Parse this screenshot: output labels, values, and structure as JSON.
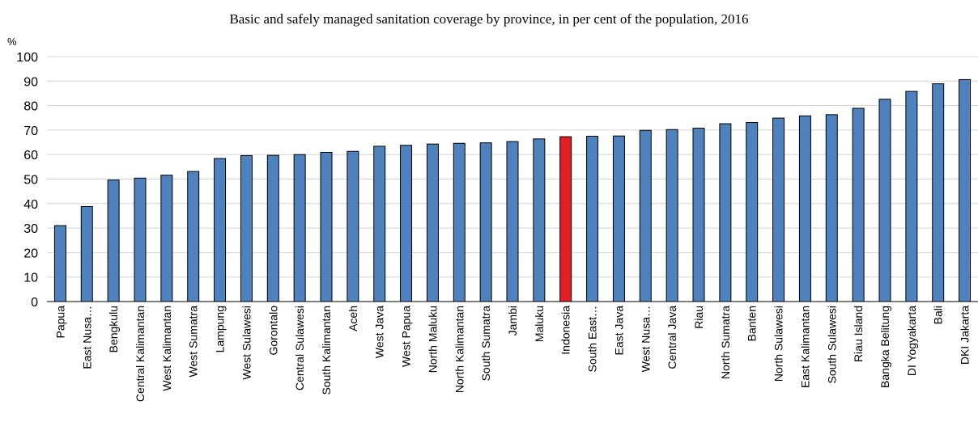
{
  "chart_data": {
    "type": "bar",
    "title": "Basic and safely managed sanitation coverage by province, in per cent of the population, 2016",
    "ylabel": "%",
    "ylim": [
      0,
      100
    ],
    "yticks": [
      0,
      10,
      20,
      30,
      40,
      50,
      60,
      70,
      80,
      90,
      100
    ],
    "grid": true,
    "categories": [
      "Papua",
      "East Nusa…",
      "Bengkulu",
      "Central Kalimantan",
      "West Kalimantan",
      "West Sumatra",
      "Lampung",
      "West Sulawesi",
      "Gorontalo",
      "Central Sulawesi",
      "South Kalimantan",
      "Aceh",
      "West Java",
      "West Papua",
      "North Maluku",
      "North Kalimantan",
      "South Sumatra",
      "Jambi",
      "Maluku",
      "Indonesia",
      "South East…",
      "East Java",
      "West Nusa…",
      "Central Java",
      "Riau",
      "North Sumatra",
      "Banten",
      "North Sulawesi",
      "East Kalimantan",
      "South Sulawesi",
      "Riau Island",
      "Bangka Belitung",
      "DI Yogyakarta",
      "Bali",
      "DKI Jakarta"
    ],
    "values": [
      31,
      38.8,
      49.6,
      50.4,
      51.6,
      53.1,
      58.4,
      59.6,
      59.7,
      60,
      60.9,
      61.3,
      63.4,
      63.8,
      64.3,
      64.6,
      64.8,
      65.3,
      66.4,
      67.3,
      67.5,
      67.6,
      69.9,
      70.2,
      70.8,
      72.6,
      73.1,
      74.9,
      75.8,
      76.3,
      78.9,
      82.6,
      85.8,
      88.9,
      90.6
    ],
    "highlight_category": "Indonesia",
    "colors": {
      "bar": "#4f81bd",
      "highlight": "#e31e24",
      "bar_stroke": "#000000",
      "grid": "#d4d4d4"
    }
  }
}
